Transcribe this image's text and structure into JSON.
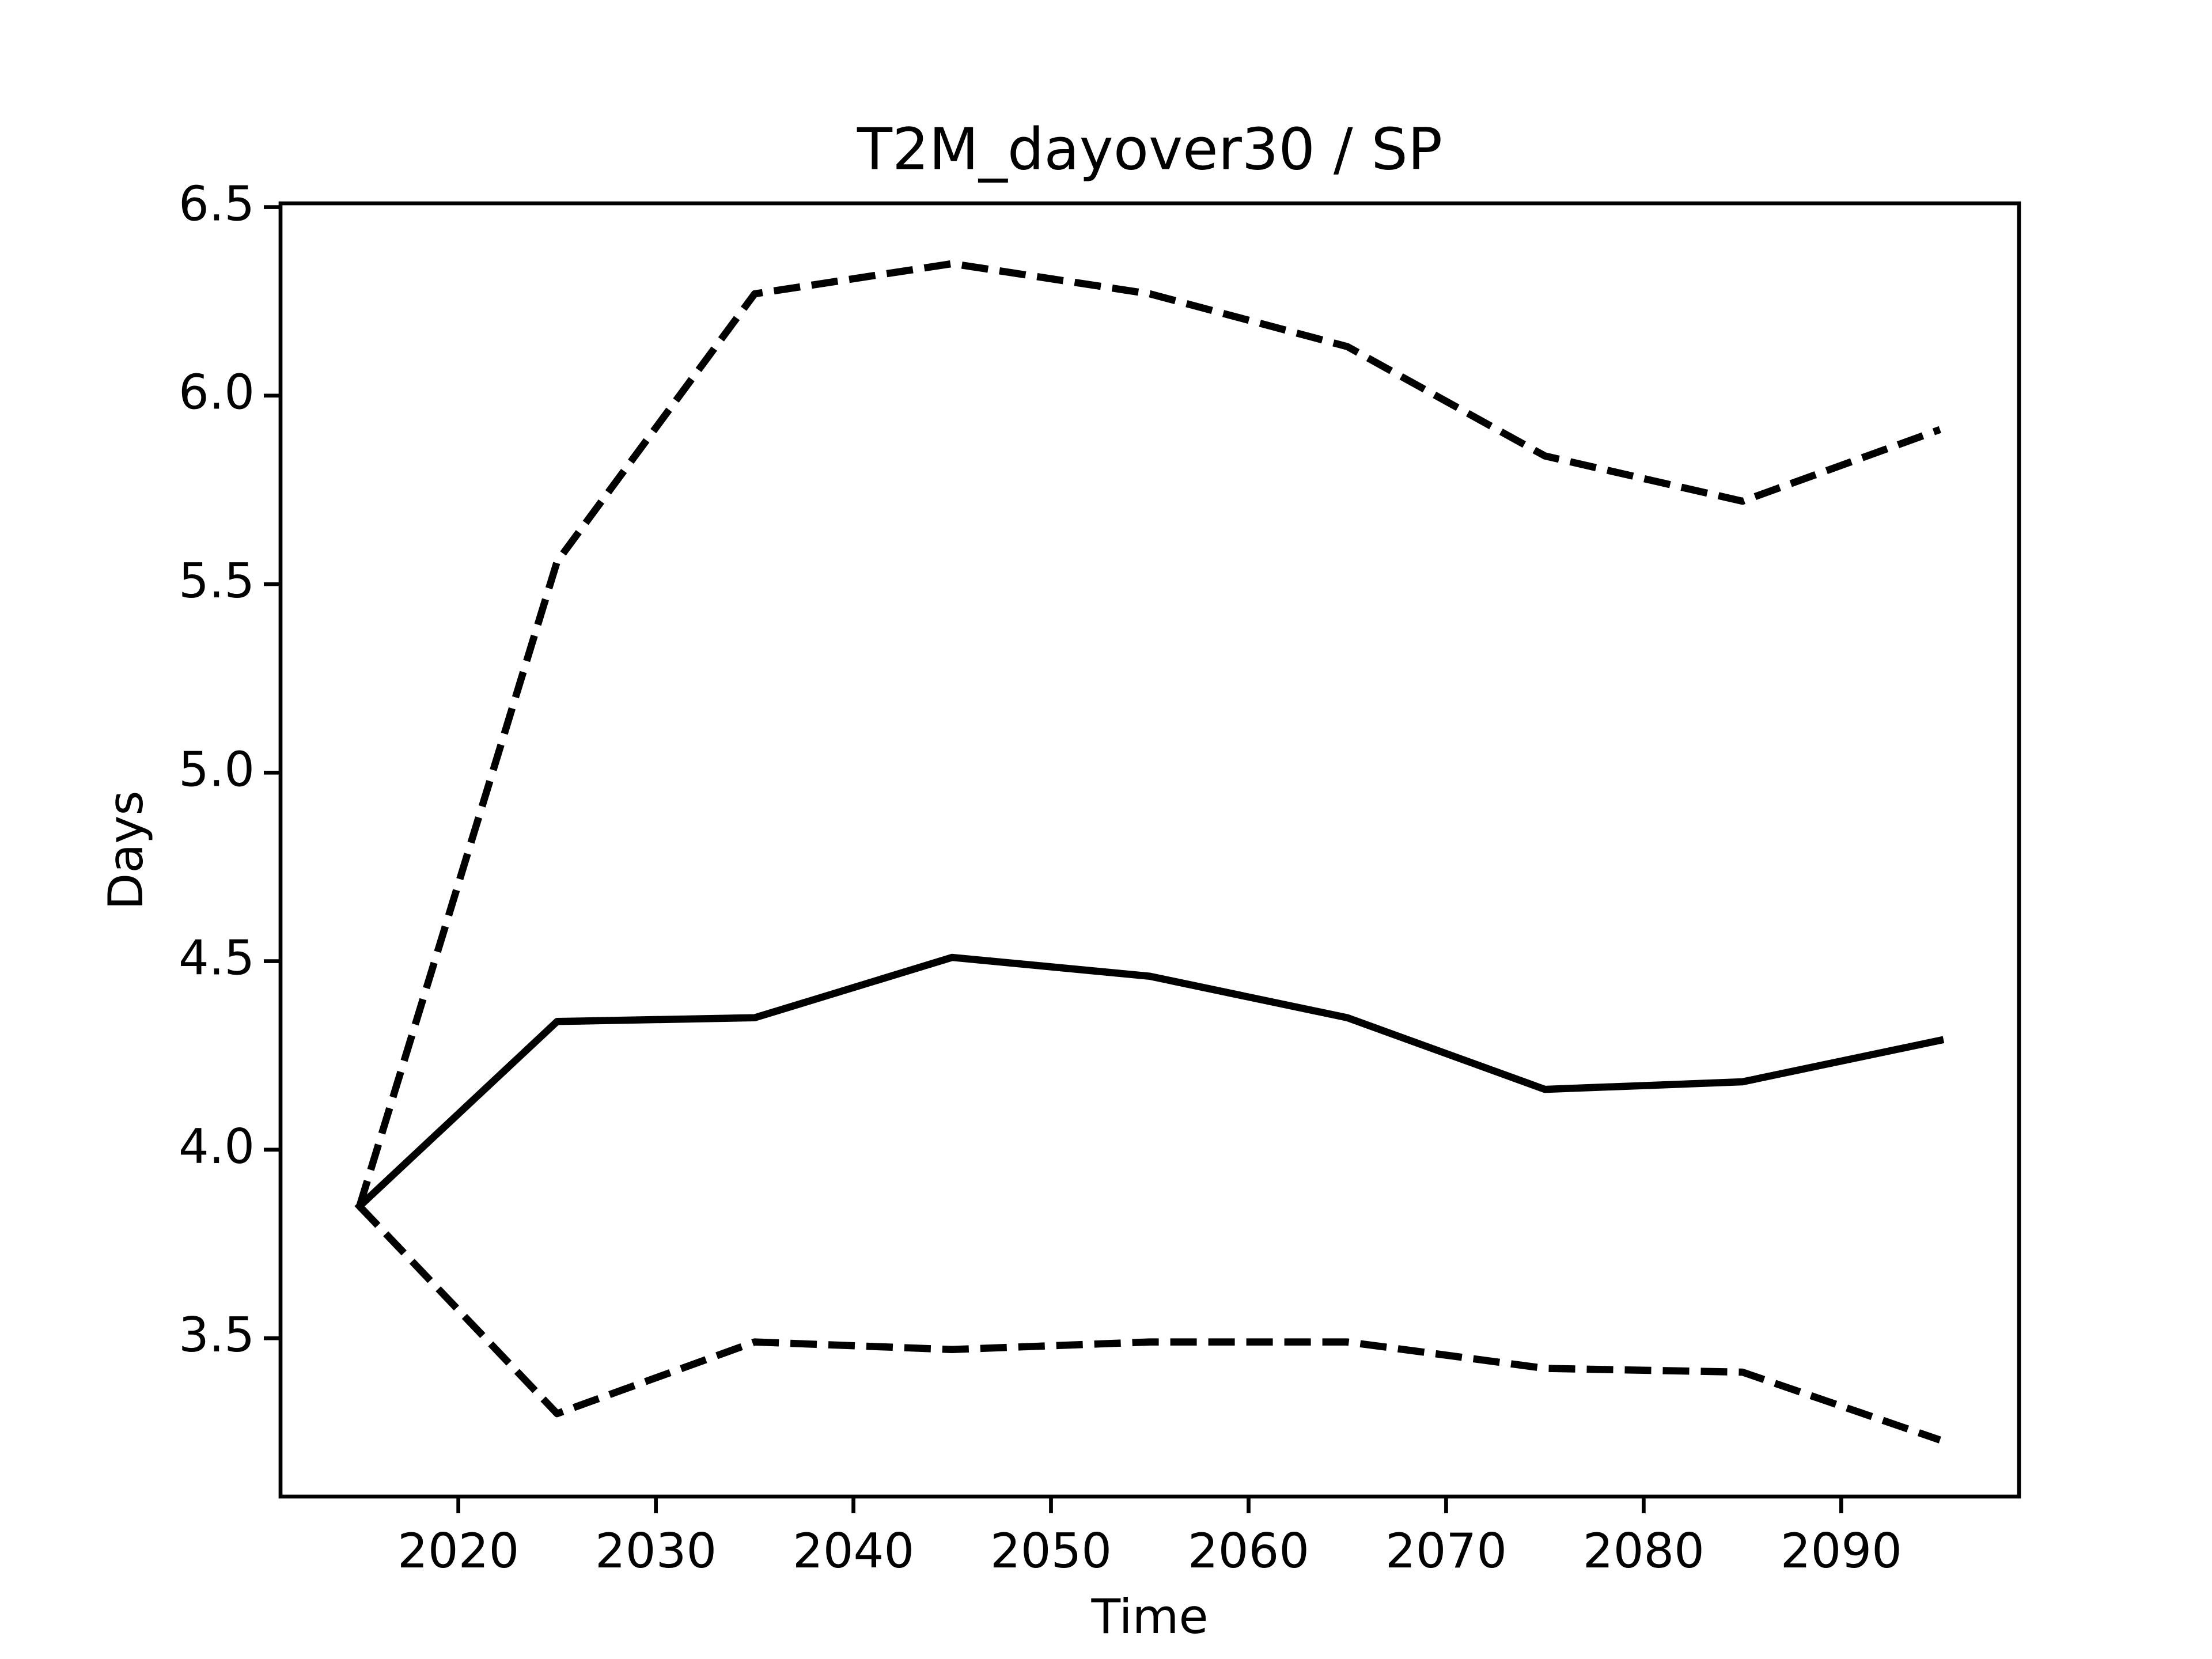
{
  "chart_data": {
    "type": "line",
    "title": "T2M_dayover30 / SP",
    "xlabel": "Time",
    "ylabel": "Days",
    "x": [
      2015,
      2025,
      2035,
      2045,
      2055,
      2065,
      2075,
      2085,
      2095
    ],
    "series": [
      {
        "color": "#000000",
        "linestyle": "solid",
        "values": [
          3.85,
          4.34,
          4.35,
          4.51,
          4.46,
          4.35,
          4.16,
          4.18,
          4.29
        ]
      },
      {
        "color": "#000000",
        "linestyle": "dashed",
        "values": [
          3.85,
          5.56,
          6.27,
          6.35,
          6.27,
          6.13,
          5.84,
          5.72,
          5.91
        ]
      },
      {
        "color": "#000000",
        "linestyle": "dashed",
        "values": [
          3.85,
          3.3,
          3.49,
          3.47,
          3.49,
          3.49,
          3.42,
          3.41,
          3.23
        ]
      }
    ],
    "xlim": [
      2011,
      2099
    ],
    "xticks": [
      2020,
      2030,
      2040,
      2050,
      2060,
      2070,
      2080,
      2090
    ],
    "ylim": [
      3.08,
      6.51
    ],
    "yticks": [
      {
        "value": 3.5,
        "label": "3.5"
      },
      {
        "value": 4,
        "label": "4.0"
      },
      {
        "value": 4.5,
        "label": "4.5"
      },
      {
        "value": 5,
        "label": "5.0"
      },
      {
        "value": 5.5,
        "label": "5.5"
      },
      {
        "value": 6,
        "label": "6.0"
      },
      {
        "value": 6.5,
        "label": "6.5"
      }
    ],
    "grid": false
  }
}
